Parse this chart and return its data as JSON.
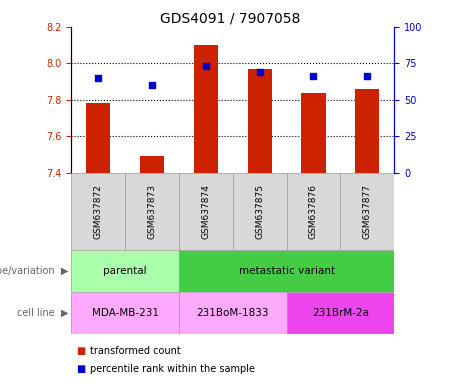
{
  "title": "GDS4091 / 7907058",
  "samples": [
    "GSM637872",
    "GSM637873",
    "GSM637874",
    "GSM637875",
    "GSM637876",
    "GSM637877"
  ],
  "bar_values": [
    7.78,
    7.49,
    8.1,
    7.97,
    7.84,
    7.86
  ],
  "bar_bottom": 7.4,
  "dot_values_pct": [
    65,
    60,
    73,
    69,
    66,
    66
  ],
  "ylim_left": [
    7.4,
    8.2
  ],
  "ylim_right": [
    0,
    100
  ],
  "yticks_left": [
    7.4,
    7.6,
    7.8,
    8.0,
    8.2
  ],
  "yticks_right": [
    0,
    25,
    50,
    75,
    100
  ],
  "bar_color": "#cc2200",
  "dot_color": "#0000cc",
  "grid_color": "#000000",
  "title_fontsize": 10,
  "tick_fontsize": 7,
  "label_fontsize": 7.5,
  "genotype_groups": [
    {
      "label": "parental",
      "samples": [
        0,
        1
      ],
      "color": "#aaffaa"
    },
    {
      "label": "metastatic variant",
      "samples": [
        2,
        3,
        4,
        5
      ],
      "color": "#44cc44"
    }
  ],
  "cell_line_groups": [
    {
      "label": "MDA-MB-231",
      "samples": [
        0,
        1
      ],
      "color": "#ffaaff"
    },
    {
      "label": "231BoM-1833",
      "samples": [
        2,
        3
      ],
      "color": "#ffaaff"
    },
    {
      "label": "231BrM-2a",
      "samples": [
        4,
        5
      ],
      "color": "#ee44ee"
    }
  ],
  "legend_items": [
    {
      "label": "transformed count",
      "color": "#cc2200"
    },
    {
      "label": "percentile rank within the sample",
      "color": "#0000cc"
    }
  ],
  "row_labels": [
    "genotype/variation",
    "cell line"
  ],
  "background_color": "#ffffff",
  "plot_bg_color": "#ffffff",
  "axis_area_bg": "#d8d8d8"
}
